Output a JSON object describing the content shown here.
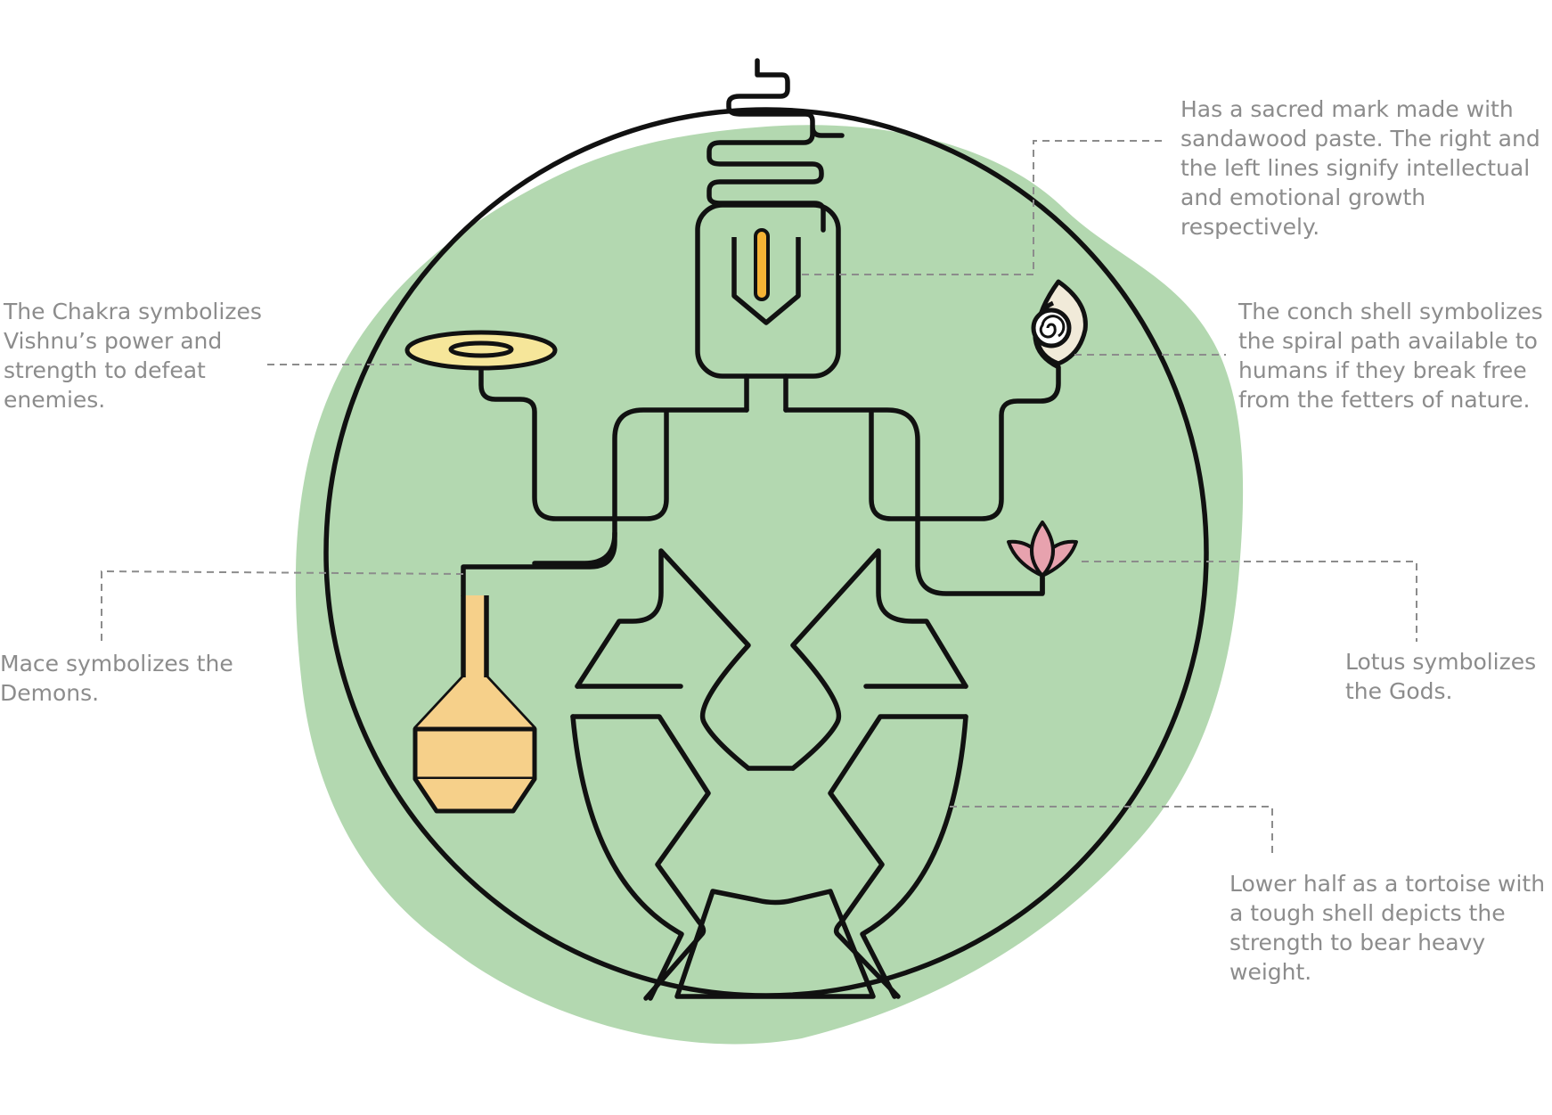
{
  "diagram": {
    "colors": {
      "background_blob": "#b3d8b0",
      "outline": "#111111",
      "chakra_fill": "#f6e69a",
      "mace_fill": "#f6d08a",
      "tilak_fill": "#f5b335",
      "lotus_fill": "#e7a2ae",
      "conch_fill": "#f1ead9",
      "leader_line": "#8c8c8c",
      "annotation_text": "#8c8c8c"
    },
    "icons": [
      "chakra-icon",
      "mace-icon",
      "conch-shell-icon",
      "lotus-icon",
      "sacred-mark-icon",
      "tortoise-shell-icon"
    ],
    "annotations": {
      "sacred_mark": "Has a sacred mark made with\nsandawood paste. The right and\nthe left lines signify intellectual\nand emotional growth\nrespectively.",
      "chakra": "The Chakra symbolizes\nVishnu’s power and\nstrength to defeat\nenemies.",
      "conch": "The conch shell symbolizes\nthe spiral path available to\nhumans if they break free\nfrom the fetters of nature.",
      "mace": "Mace symbolizes the\nDemons.",
      "lotus": "Lotus symbolizes\nthe Gods.",
      "tortoise": "Lower half as a tortoise with\na tough shell depicts the\nstrength to bear heavy\nweight."
    }
  }
}
